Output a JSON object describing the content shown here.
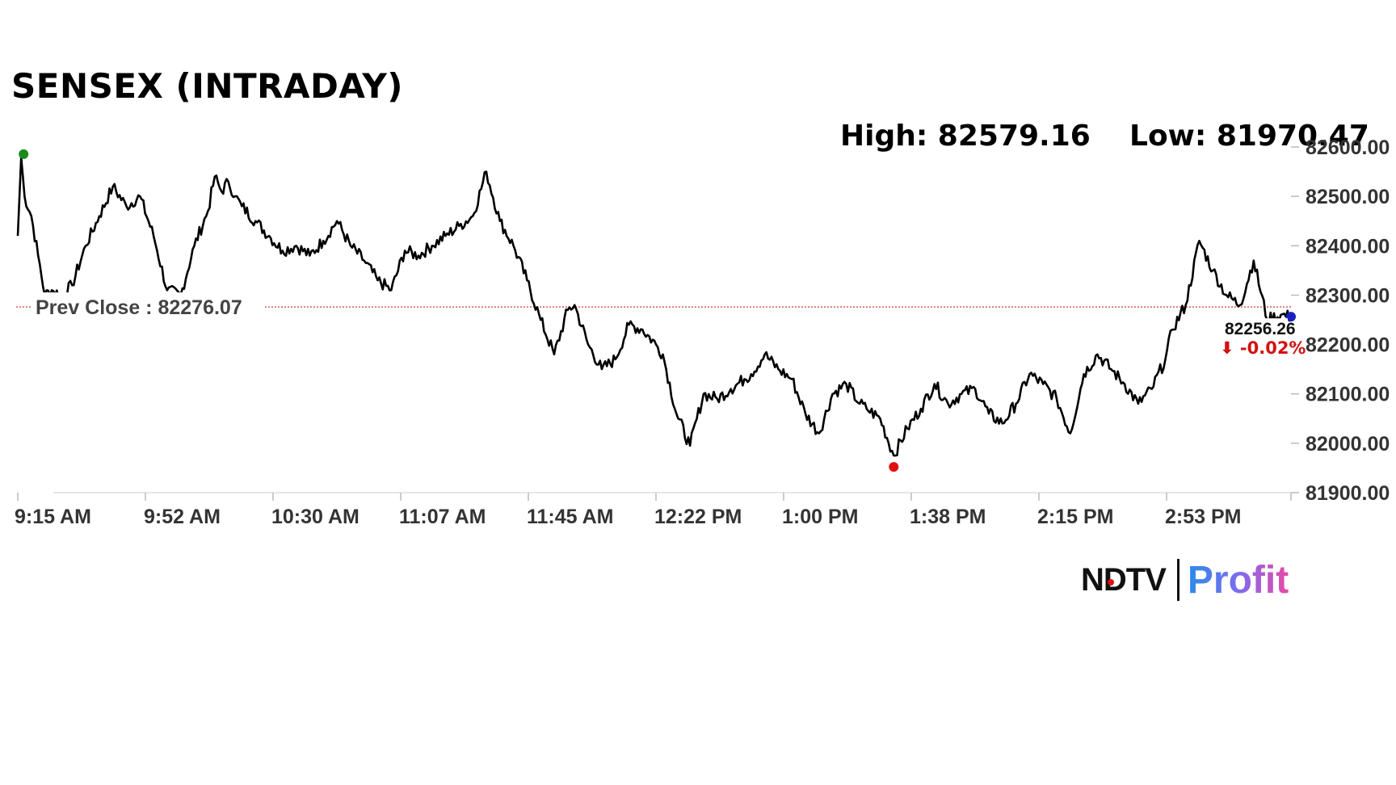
{
  "chart_data": {
    "type": "line",
    "title": "SENSEX (INTRADAY)",
    "high_label": "High: 82579.16",
    "low_label": "Low: 81970.47",
    "prev_close_label": "Prev Close : 82276.07",
    "prev_close": 82276.07,
    "last_value_label": "82256.26",
    "change_label": "⬇ -0.02%",
    "x_ticks": [
      "9:15 AM",
      "9:52 AM",
      "10:30 AM",
      "11:07 AM",
      "11:45 AM",
      "12:22 PM",
      "1:00 PM",
      "1:38 PM",
      "2:15 PM",
      "2:53 PM"
    ],
    "y_ticks": [
      "82600.00",
      "82500.00",
      "82400.00",
      "82300.00",
      "82200.00",
      "82100.00",
      "82000.00",
      "81900.00"
    ],
    "ylim": [
      81900,
      82600
    ],
    "x_minutes_range": [
      0,
      375
    ],
    "series": [
      {
        "x": [
          0,
          1,
          2,
          4,
          6,
          8,
          10,
          13,
          16,
          20,
          24,
          28,
          32,
          36,
          40,
          44,
          48,
          52,
          56,
          58,
          60,
          62,
          64,
          66,
          70,
          74,
          78,
          82,
          86,
          90,
          94,
          98,
          102,
          106,
          110,
          114,
          118,
          122,
          126,
          130,
          134,
          138,
          142,
          146,
          150,
          154,
          158,
          162,
          164,
          168,
          172,
          176,
          180,
          184,
          188,
          190,
          194,
          198,
          202,
          206,
          210,
          214,
          216,
          220,
          224,
          228,
          232,
          236,
          240,
          244,
          248,
          250,
          254,
          258,
          262,
          266,
          270,
          274,
          278,
          282,
          286,
          290,
          294,
          298,
          302,
          306,
          310,
          314,
          318,
          322,
          326,
          330,
          334,
          338,
          340,
          344,
          348,
          352,
          356,
          360,
          364,
          368,
          372,
          375
        ],
        "values": [
          82420,
          82579,
          82500,
          82460,
          82380,
          82300,
          82310,
          82300,
          82320,
          82400,
          82460,
          82520,
          82480,
          82500,
          82420,
          82310,
          82300,
          82400,
          82470,
          82540,
          82510,
          82530,
          82500,
          82480,
          82450,
          82420,
          82390,
          82400,
          82380,
          82410,
          82450,
          82400,
          82370,
          82330,
          82310,
          82390,
          82380,
          82400,
          82420,
          82440,
          82460,
          82550,
          82450,
          82400,
          82330,
          82250,
          82180,
          82270,
          82280,
          82200,
          82150,
          82170,
          82240,
          82230,
          82200,
          82180,
          82060,
          81995,
          82100,
          82090,
          82110,
          82130,
          82140,
          82180,
          82150,
          82130,
          82060,
          82020,
          82100,
          82120,
          82080,
          82070,
          82050,
          81975,
          82030,
          82070,
          82120,
          82080,
          82100,
          82110,
          82060,
          82040,
          82080,
          82140,
          82120,
          82090,
          82020,
          82140,
          82180,
          82150,
          82120,
          82080,
          82110,
          82170,
          82230,
          82280,
          82410,
          82350,
          82300,
          82280,
          82370,
          82250,
          82260,
          82256.26
        ]
      }
    ]
  },
  "brand": {
    "ndtv": "NDTV",
    "profit": "Profit",
    "colors": {
      "line": "#000000",
      "prev_close": "#cc2222",
      "high_dot": "#1a8a1a",
      "low_dot": "#e01010",
      "last_dot": "#1a20c0",
      "change": "#d11212"
    }
  }
}
